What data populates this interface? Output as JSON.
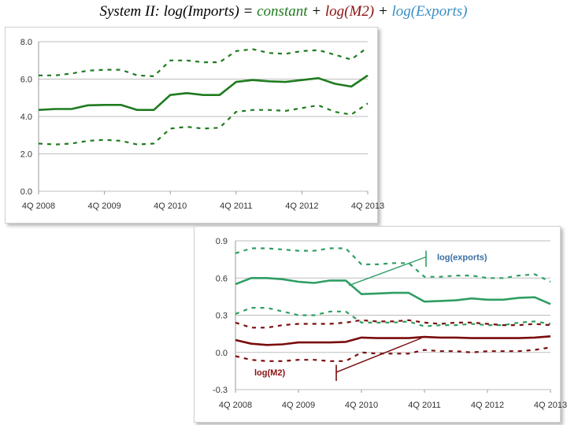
{
  "title": {
    "prefix": "System II: log(Imports) = ",
    "constant": "constant",
    "plus1": " + ",
    "m2": "log(M2)",
    "plus2": " + ",
    "exports": "log(Exports)",
    "colors": {
      "text": "#000000",
      "constant": "#1e7b1e",
      "m2": "#8b1010",
      "exports": "#3a8fc4"
    }
  },
  "chart_data": [
    {
      "type": "line",
      "ylim": [
        0,
        8
      ],
      "yticks": [
        "0.0",
        "2.0",
        "4.0",
        "6.0",
        "8.0"
      ],
      "ytick_values": [
        0,
        2,
        4,
        6,
        8
      ],
      "xlim": [
        0,
        20
      ],
      "xticks": [
        "4Q 2008",
        "4Q 2009",
        "4Q 2010",
        "4Q 2011",
        "4Q 2012",
        "4Q 2013"
      ],
      "xtick_values": [
        0,
        4,
        8,
        12,
        16,
        20
      ],
      "grid": true,
      "series": [
        {
          "values": [
            4.35,
            4.4,
            4.4,
            4.6,
            4.62,
            4.62,
            4.35,
            4.35,
            5.15,
            5.25,
            5.15,
            5.15,
            5.85,
            5.95,
            5.88,
            5.85,
            5.95,
            6.05,
            5.75,
            5.6,
            6.2
          ],
          "color": "#1e7b1e",
          "style": "solid"
        },
        {
          "values": [
            6.2,
            6.2,
            6.3,
            6.45,
            6.5,
            6.5,
            6.2,
            6.15,
            7.0,
            7.0,
            6.9,
            6.9,
            7.5,
            7.6,
            7.4,
            7.35,
            7.5,
            7.55,
            7.3,
            7.05,
            7.7
          ],
          "color": "#1e7b1e",
          "style": "dashed"
        },
        {
          "values": [
            2.55,
            2.5,
            2.55,
            2.7,
            2.75,
            2.7,
            2.5,
            2.55,
            3.35,
            3.45,
            3.35,
            3.4,
            4.25,
            4.35,
            4.35,
            4.3,
            4.45,
            4.6,
            4.25,
            4.1,
            4.7
          ],
          "color": "#1e7b1e",
          "style": "dashed"
        }
      ],
      "annotations": []
    },
    {
      "type": "line",
      "ylim": [
        -0.3,
        0.9
      ],
      "yticks": [
        "-0.3",
        "0.0",
        "0.3",
        "0.6",
        "0.9"
      ],
      "ytick_values": [
        -0.3,
        0,
        0.3,
        0.6,
        0.9
      ],
      "xlim": [
        0,
        20
      ],
      "xticks": [
        "4Q 2008",
        "4Q 2009",
        "4Q 2010",
        "4Q 2011",
        "4Q 2012",
        "4Q 2013"
      ],
      "xtick_values": [
        0,
        4,
        8,
        12,
        16,
        20
      ],
      "grid": true,
      "series": [
        {
          "name": "log(exports)",
          "values": [
            0.55,
            0.6,
            0.6,
            0.59,
            0.57,
            0.56,
            0.58,
            0.58,
            0.47,
            0.475,
            0.48,
            0.48,
            0.41,
            0.415,
            0.42,
            0.435,
            0.425,
            0.425,
            0.44,
            0.445,
            0.39
          ],
          "color": "#2f9e63",
          "style": "solid"
        },
        {
          "values": [
            0.8,
            0.84,
            0.84,
            0.83,
            0.82,
            0.82,
            0.84,
            0.84,
            0.71,
            0.71,
            0.72,
            0.72,
            0.61,
            0.61,
            0.62,
            0.62,
            0.6,
            0.6,
            0.62,
            0.63,
            0.57
          ],
          "color": "#2f9e63",
          "style": "dashed"
        },
        {
          "values": [
            0.31,
            0.36,
            0.36,
            0.33,
            0.3,
            0.3,
            0.33,
            0.33,
            0.24,
            0.24,
            0.24,
            0.25,
            0.21,
            0.22,
            0.22,
            0.23,
            0.22,
            0.22,
            0.24,
            0.25,
            0.23
          ],
          "color": "#2f9e63",
          "style": "dashed"
        },
        {
          "name": "log(M2)",
          "values": [
            0.1,
            0.07,
            0.06,
            0.065,
            0.08,
            0.08,
            0.08,
            0.085,
            0.12,
            0.115,
            0.115,
            0.115,
            0.125,
            0.12,
            0.12,
            0.115,
            0.115,
            0.115,
            0.115,
            0.12,
            0.13
          ],
          "color": "#7a0c0c",
          "style": "solid"
        },
        {
          "values": [
            0.24,
            0.2,
            0.2,
            0.22,
            0.23,
            0.23,
            0.23,
            0.24,
            0.26,
            0.25,
            0.25,
            0.26,
            0.24,
            0.23,
            0.24,
            0.24,
            0.23,
            0.22,
            0.22,
            0.23,
            0.22
          ],
          "color": "#7a0c0c",
          "style": "dashed"
        },
        {
          "values": [
            -0.03,
            -0.06,
            -0.07,
            -0.07,
            -0.06,
            -0.06,
            -0.07,
            -0.07,
            0.0,
            -0.01,
            -0.01,
            -0.01,
            0.02,
            0.01,
            0.01,
            0.0,
            0.01,
            0.01,
            0.01,
            0.02,
            0.04
          ],
          "color": "#7a0c0c",
          "style": "dashed"
        }
      ],
      "annotations": [
        {
          "text": "log(exports)",
          "color": "#3a6fa0",
          "point": [
            7.2,
            0.54
          ],
          "line_end": [
            12.1,
            0.77
          ],
          "bar_top": 0.82,
          "bar_bottom": 0.69,
          "label_at": [
            12.8,
            0.77
          ]
        },
        {
          "text": "log(M2)",
          "color": "#8b1010",
          "point": [
            11.8,
            0.115
          ],
          "line_end": [
            6.4,
            -0.16
          ],
          "bar_top": -0.1,
          "bar_bottom": -0.23,
          "label_at": [
            1.2,
            -0.16
          ]
        }
      ]
    }
  ]
}
